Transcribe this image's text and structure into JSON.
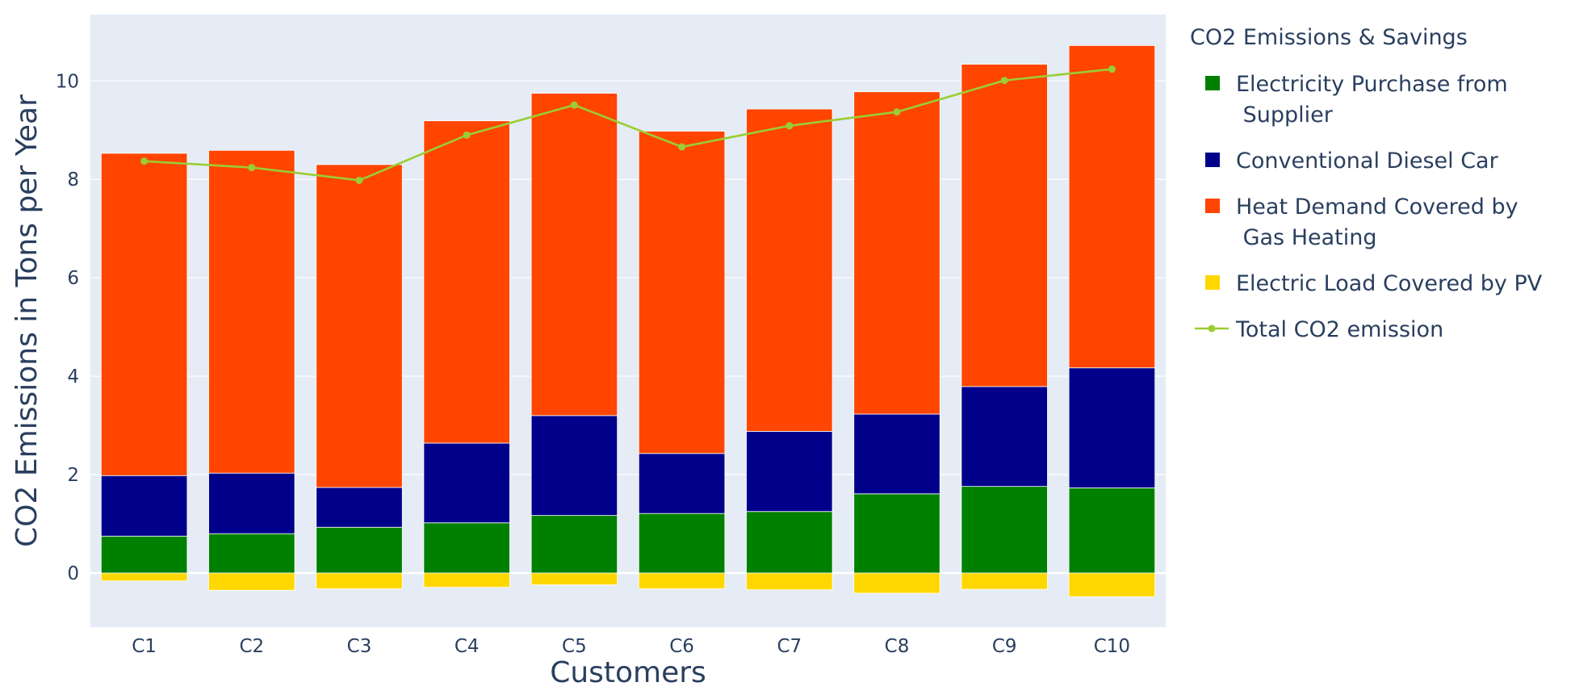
{
  "chart_data": {
    "type": "bar",
    "barmode": "relative",
    "categories": [
      "C1",
      "C2",
      "C3",
      "C4",
      "C5",
      "C6",
      "C7",
      "C8",
      "C9",
      "C10"
    ],
    "series": [
      {
        "name": "Electricity Purchase from Supplier",
        "kind": "bar",
        "color": "#008000",
        "values": [
          0.75,
          0.8,
          0.93,
          1.02,
          1.17,
          1.21,
          1.25,
          1.61,
          1.76,
          1.73
        ]
      },
      {
        "name": "Conventional Diesel Car",
        "kind": "bar",
        "color": "#00008b",
        "values": [
          1.23,
          1.23,
          0.81,
          1.62,
          2.03,
          1.22,
          1.63,
          1.62,
          2.03,
          2.44
        ]
      },
      {
        "name": "Heat Demand Covered by Gas Heating",
        "kind": "bar",
        "color": "#ff4500",
        "values": [
          6.55,
          6.56,
          6.56,
          6.55,
          6.55,
          6.55,
          6.55,
          6.55,
          6.55,
          6.55
        ]
      },
      {
        "name": "Electric Load Covered by PV",
        "kind": "bar",
        "color": "#ffd700",
        "values": [
          -0.16,
          -0.35,
          -0.32,
          -0.29,
          -0.24,
          -0.32,
          -0.34,
          -0.41,
          -0.33,
          -0.48
        ]
      },
      {
        "name": "Total CO2 emission",
        "kind": "line",
        "color": "#9acd32",
        "values": [
          8.37,
          8.24,
          7.98,
          8.9,
          9.51,
          8.66,
          9.09,
          9.37,
          10.01,
          10.24
        ]
      }
    ],
    "legend_lines": [
      [
        "Electricity Purchase from",
        " Supplier"
      ],
      [
        "Conventional Diesel Car"
      ],
      [
        "Heat Demand Covered by",
        " Gas Heating"
      ],
      [
        "Electric Load Covered by PV"
      ],
      [
        "Total CO2 emission"
      ]
    ],
    "legend_title": "CO2 Emissions & Savings",
    "legend_position": "right",
    "xlabel": "Customers",
    "ylabel": "CO2 Emissions in Tons per Year",
    "ylim": [
      -1.1,
      11.35
    ],
    "yticks": [
      0,
      2,
      4,
      6,
      8,
      10
    ],
    "grid": true,
    "plot_bgcolor": "#e5ecf6",
    "grid_color": "#ffffff",
    "text_color": "#2a3f5f"
  }
}
